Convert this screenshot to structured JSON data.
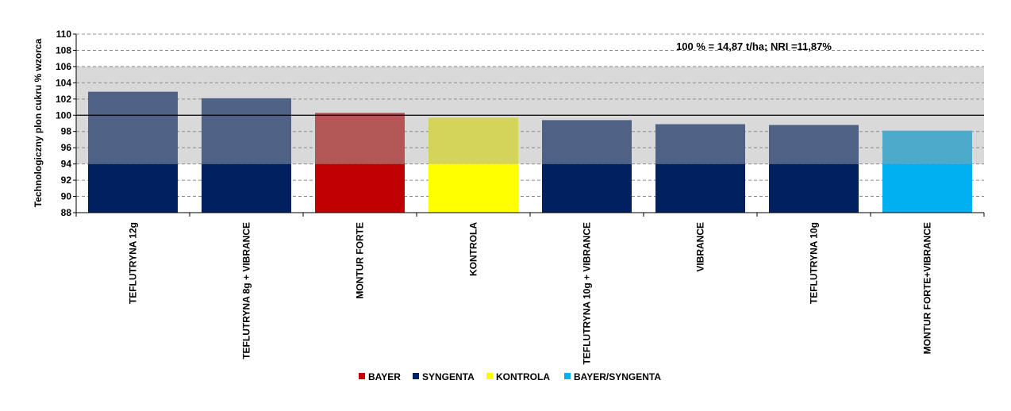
{
  "chart_data": {
    "type": "bar",
    "ylabel": "Technologiczny plon cukru % wzorca",
    "annotation": "100 % = 14,87 t/ha; NRI =11,87%",
    "ylim": [
      88,
      110
    ],
    "yticks": [
      88,
      90,
      92,
      94,
      96,
      98,
      100,
      102,
      104,
      106,
      108,
      110
    ],
    "band": [
      94,
      106
    ],
    "reference_line": 100,
    "categories": [
      "TEFLUTRYNA 12g",
      "TEFLUTRYNA 8g + VIBRANCE",
      "MONTUR FORTE",
      "KONTROLA",
      "TEFLUTRYNA 10g + VIBRANCE",
      "VIBRANCE",
      "TEFLUTRYNA 10g",
      "MONTUR FORTE+VIBRANCE"
    ],
    "values": [
      102.9,
      102.1,
      100.3,
      99.7,
      99.4,
      98.9,
      98.8,
      98.1
    ],
    "groups": [
      "SYNGENTA",
      "SYNGENTA",
      "BAYER",
      "KONTROLA",
      "SYNGENTA",
      "SYNGENTA",
      "SYNGENTA",
      "BAYER/SYNGENTA"
    ],
    "legend": [
      {
        "name": "BAYER",
        "color": "#c00000"
      },
      {
        "name": "SYNGENTA",
        "color": "#002060"
      },
      {
        "name": "KONTROLA",
        "color": "#ffff00"
      },
      {
        "name": "BAYER/SYNGENTA",
        "color": "#00b0f0"
      }
    ],
    "band_colors": {
      "BAYER": "#b25656",
      "SYNGENTA": "#4f6185",
      "KONTROLA": "#d4d45a",
      "BAYER/SYNGENTA": "#4eaacb"
    },
    "legend_position": "bottom",
    "grid": true
  }
}
